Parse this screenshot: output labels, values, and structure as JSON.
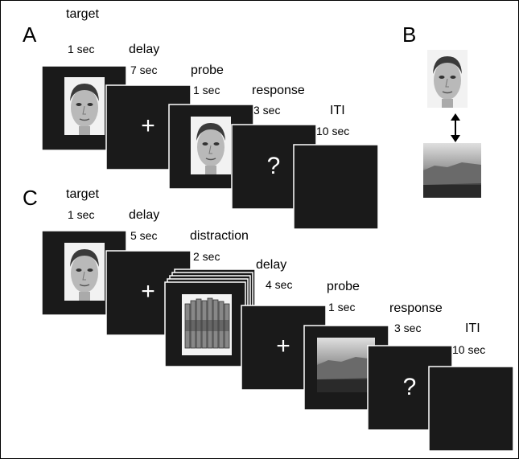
{
  "panels": [
    {
      "label": "A",
      "steps": [
        {
          "name": "target",
          "duration": "1 sec"
        },
        {
          "name": "delay",
          "duration": "7 sec"
        },
        {
          "name": "probe",
          "duration": "1 sec"
        },
        {
          "name": "response",
          "duration": "3 sec"
        },
        {
          "name": "ITI",
          "duration": "10 sec"
        }
      ]
    },
    {
      "label": "B"
    },
    {
      "label": "C",
      "steps": [
        {
          "name": "target",
          "duration": "1 sec"
        },
        {
          "name": "delay",
          "duration": "5 sec"
        },
        {
          "name": "distraction",
          "duration": "2 sec"
        },
        {
          "name": "delay",
          "duration": "4 sec"
        },
        {
          "name": "probe",
          "duration": "1 sec"
        },
        {
          "name": "response",
          "duration": "3 sec"
        },
        {
          "name": "ITI",
          "duration": "10 sec"
        }
      ]
    }
  ],
  "symbols": {
    "fixation": "+",
    "question": "?"
  }
}
